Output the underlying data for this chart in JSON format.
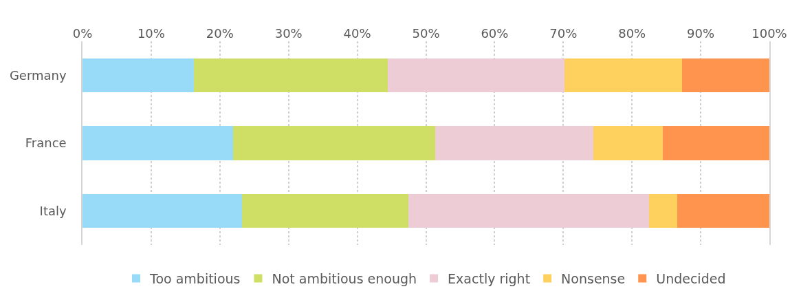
{
  "chart_data": {
    "type": "bar",
    "orientation": "horizontal",
    "stacked": true,
    "categories": [
      "Germany",
      "France",
      "Italy"
    ],
    "series": [
      {
        "name": "Too ambitious",
        "color": "#97dbf9",
        "values": [
          16.2,
          21.9,
          23.2
        ]
      },
      {
        "name": "Not ambitious enough",
        "color": "#cfdf66",
        "values": [
          28.2,
          29.5,
          24.2
        ]
      },
      {
        "name": "Exactly right",
        "color": "#edccd5",
        "values": [
          25.8,
          23.0,
          35.1
        ]
      },
      {
        "name": "Nonsense",
        "color": "#fed05e",
        "values": [
          17.1,
          10.1,
          4.1
        ]
      },
      {
        "name": "Undecided",
        "color": "#ff944f",
        "values": [
          12.7,
          15.5,
          13.4
        ]
      }
    ],
    "xlim": [
      0,
      100
    ],
    "xticks": [
      {
        "value": 0,
        "label": "0%"
      },
      {
        "value": 10,
        "label": "10%"
      },
      {
        "value": 20,
        "label": "20%"
      },
      {
        "value": 30,
        "label": "30%"
      },
      {
        "value": 40,
        "label": "40%"
      },
      {
        "value": 50,
        "label": "50%"
      },
      {
        "value": 60,
        "label": "60%"
      },
      {
        "value": 70,
        "label": "70%"
      },
      {
        "value": 80,
        "label": "80%"
      },
      {
        "value": 90,
        "label": "90%"
      },
      {
        "value": 100,
        "label": "100%"
      }
    ],
    "grid": "x",
    "legend": "bottom"
  }
}
